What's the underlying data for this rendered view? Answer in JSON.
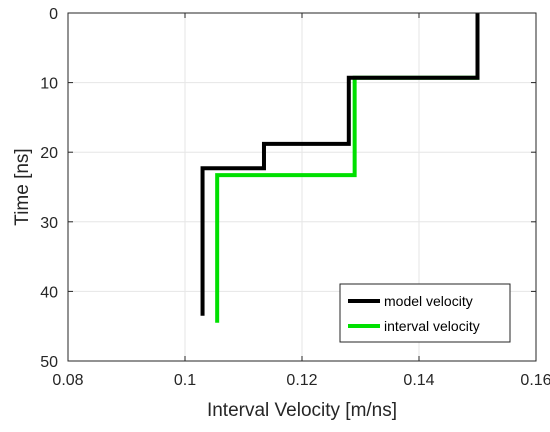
{
  "chart_data": {
    "type": "line",
    "xlabel": "Interval Velocity [m/ns]",
    "ylabel": "Time [ns]",
    "xlim": [
      0.08,
      0.16
    ],
    "ylim": [
      0,
      50
    ],
    "y_reversed": true,
    "grid": true,
    "legend_placement": "bottom-right",
    "x_ticks": [
      "0.08",
      "0.1",
      "0.12",
      "0.14",
      "0.16"
    ],
    "y_ticks": [
      "0",
      "10",
      "20",
      "30",
      "40",
      "50"
    ],
    "series": [
      {
        "name": "model velocity",
        "color": "#000000",
        "points": [
          [
            0.15,
            0
          ],
          [
            0.15,
            9.3
          ],
          [
            0.128,
            9.3
          ],
          [
            0.128,
            18.8
          ],
          [
            0.1135,
            18.8
          ],
          [
            0.1135,
            22.3
          ],
          [
            0.103,
            22.3
          ],
          [
            0.103,
            43.5
          ]
        ]
      },
      {
        "name": "interval velocity",
        "color": "#00e000",
        "points": [
          [
            0.15,
            0
          ],
          [
            0.15,
            9.3
          ],
          [
            0.129,
            9.3
          ],
          [
            0.129,
            23.3
          ],
          [
            0.1055,
            23.3
          ],
          [
            0.1055,
            44.5
          ]
        ]
      }
    ]
  }
}
